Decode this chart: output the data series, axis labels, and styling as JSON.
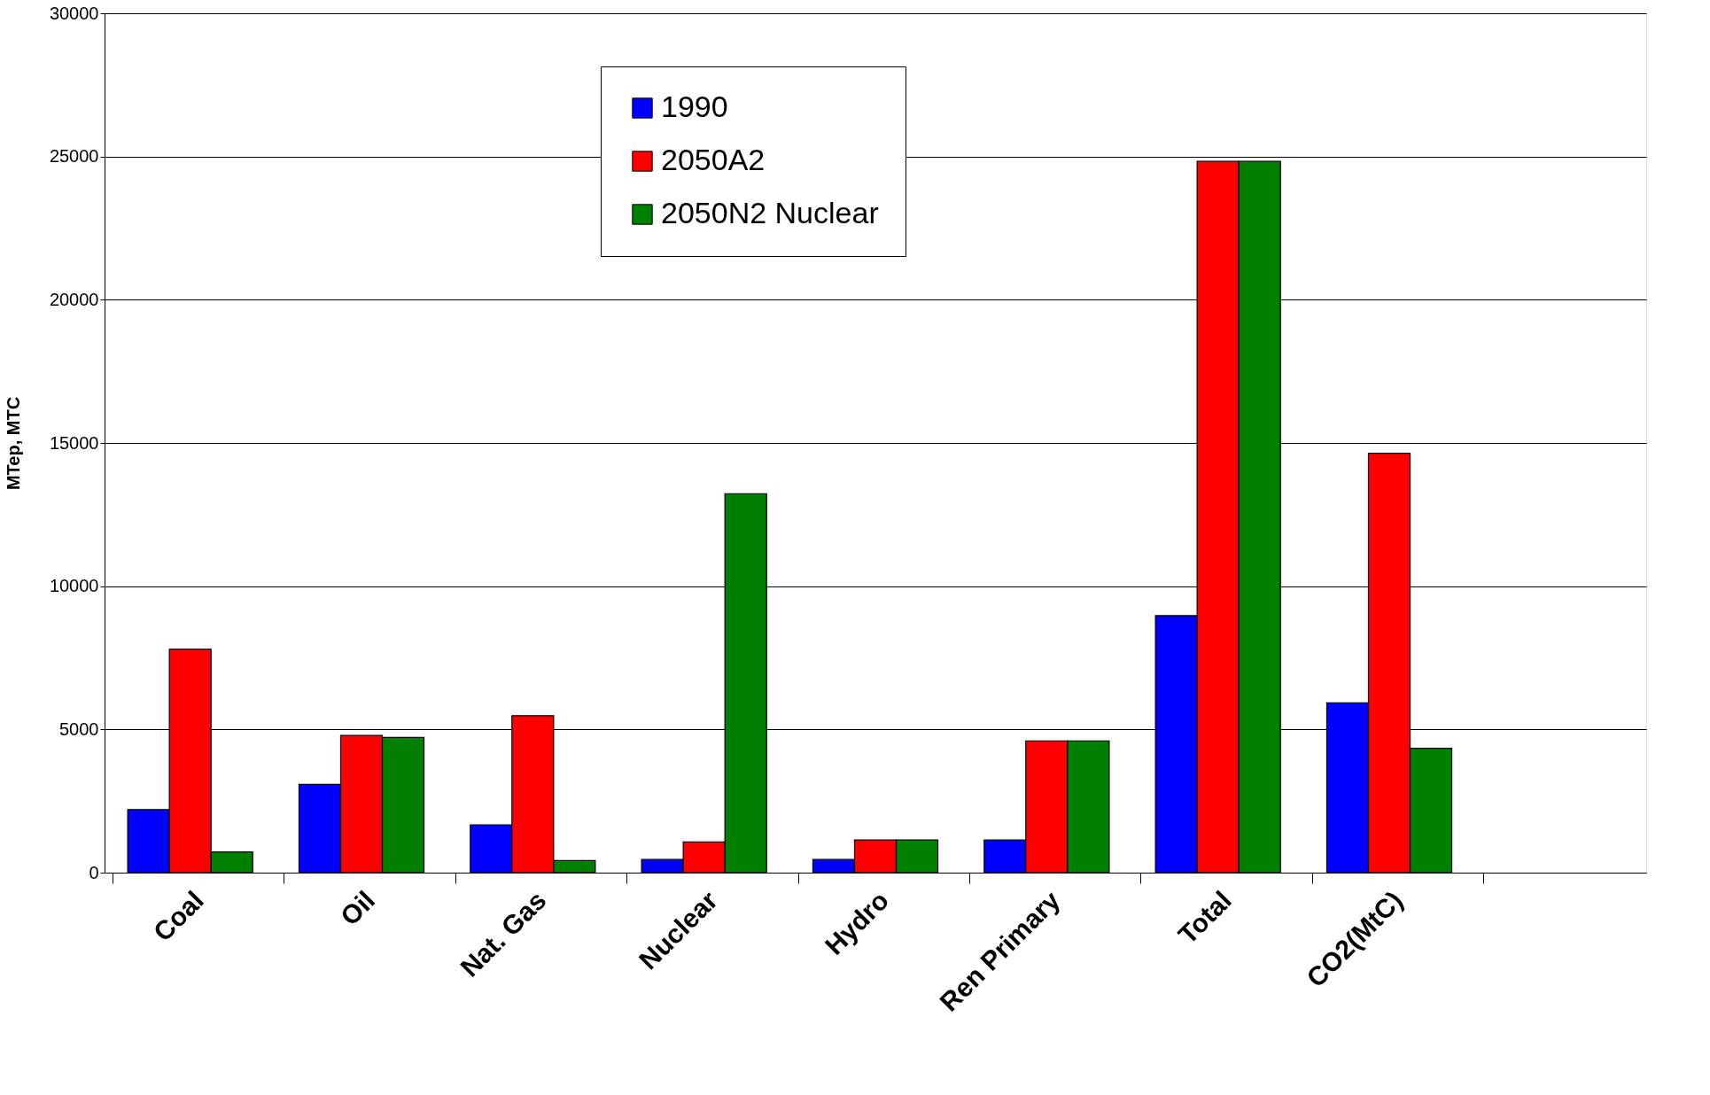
{
  "chart_data": {
    "type": "bar",
    "ylabel": "MTep, MTC",
    "categories": [
      "Coal",
      "Oil",
      "Nat. Gas",
      "Nuclear",
      "Hydro",
      "Ren Primary",
      "Total",
      "CO2(MtC)",
      null
    ],
    "series": [
      {
        "name": "1990",
        "color": "#0000ff",
        "values": [
          2200,
          3080,
          1670,
          460,
          460,
          1140,
          8970,
          5930,
          null
        ]
      },
      {
        "name": "2050A2",
        "color": "#ff0000",
        "values": [
          7800,
          4790,
          5480,
          1070,
          1140,
          4600,
          24830,
          14640,
          null
        ]
      },
      {
        "name": "2050N2 Nuclear",
        "color": "#008000",
        "values": [
          720,
          4720,
          420,
          13230,
          1140,
          4600,
          24830,
          4340,
          null
        ]
      }
    ],
    "ylim": [
      0,
      30000
    ],
    "yticks": [
      0,
      5000,
      10000,
      15000,
      20000,
      25000,
      30000
    ],
    "grid": "y",
    "legend": "top"
  }
}
